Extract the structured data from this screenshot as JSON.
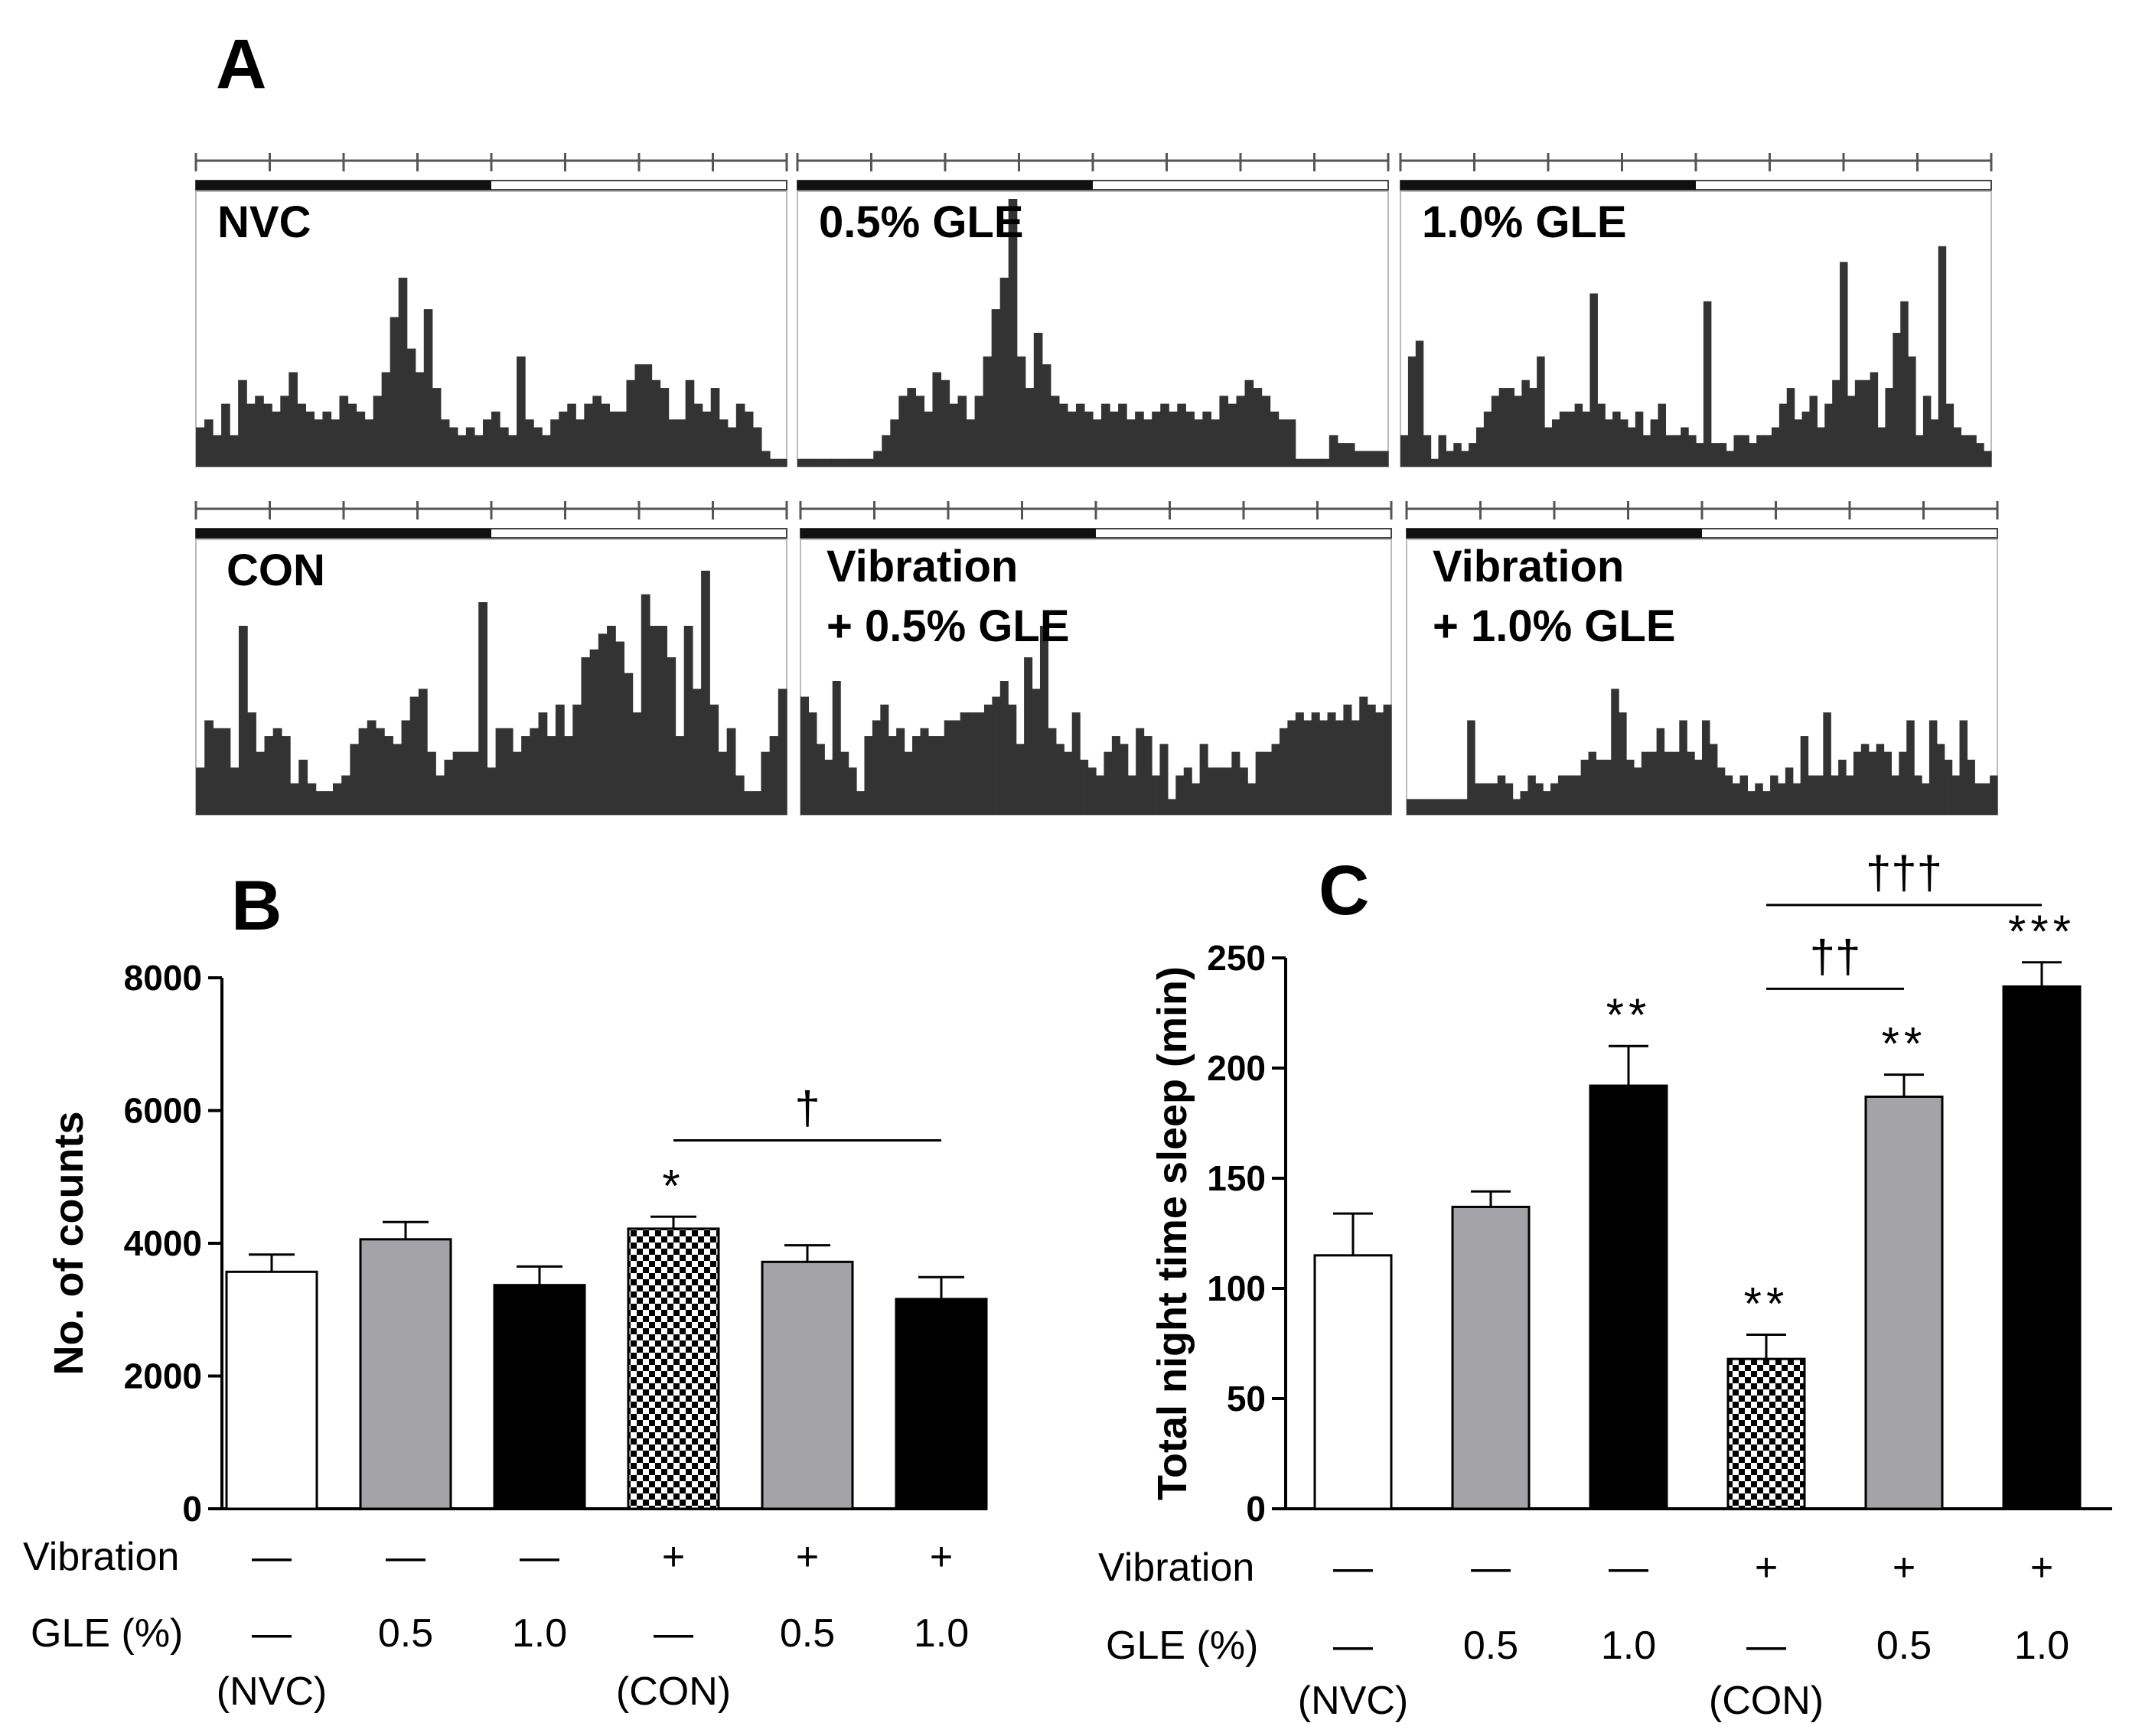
{
  "panels": {
    "a": "A",
    "b": "B",
    "c": "C"
  },
  "actograms": [
    {
      "label": [
        "NVC"
      ],
      "ymax": 34,
      "values": [
        5,
        6,
        4,
        8,
        4,
        11,
        8,
        9,
        8,
        7,
        9,
        12,
        8,
        7,
        6,
        7,
        6,
        9,
        8,
        7,
        6,
        9,
        12,
        19,
        24,
        15,
        12,
        20,
        10,
        6,
        5,
        4,
        5,
        4,
        6,
        7,
        5,
        4,
        14,
        6,
        5,
        4,
        6,
        7,
        8,
        6,
        8,
        9,
        8,
        7,
        7,
        11,
        13,
        13,
        11,
        10,
        6,
        6,
        11,
        8,
        7,
        10,
        6,
        5,
        8,
        7,
        5,
        2,
        1,
        1
      ]
    },
    {
      "label": [
        "0.5% GLE"
      ],
      "ymax": 34,
      "values": [
        1,
        1,
        1,
        1,
        1,
        1,
        1,
        1,
        1,
        2,
        4,
        6,
        9,
        10,
        9,
        7,
        12,
        11,
        8,
        9,
        6,
        9,
        14,
        20,
        24,
        34,
        14,
        10,
        17,
        13,
        9,
        8,
        7,
        8,
        7,
        6,
        8,
        7,
        8,
        6,
        7,
        6,
        7,
        8,
        7,
        8,
        7,
        6,
        7,
        6,
        9,
        8,
        9,
        11,
        10,
        9,
        7,
        6,
        6,
        1,
        1,
        1,
        1,
        4,
        3,
        3,
        2,
        2,
        2,
        2
      ]
    },
    {
      "label": [
        "1.0% GLE"
      ],
      "ymax": 34,
      "values": [
        4,
        14,
        16,
        4,
        1,
        4,
        2,
        3,
        2,
        3,
        5,
        7,
        9,
        10,
        10,
        9,
        11,
        10,
        14,
        5,
        6,
        7,
        7,
        8,
        7,
        22,
        8,
        6,
        7,
        6,
        5,
        7,
        4,
        6,
        8,
        4,
        4,
        5,
        4,
        3,
        21,
        3,
        3,
        2,
        4,
        4,
        3,
        4,
        4,
        5,
        8,
        10,
        6,
        7,
        9,
        5,
        8,
        11,
        26,
        9,
        11,
        11,
        12,
        5,
        10,
        17,
        21,
        14,
        4,
        9,
        6,
        28,
        8,
        5,
        4,
        4,
        3,
        2
      ]
    },
    {
      "label": [
        "CON"
      ],
      "ymax": 34,
      "values": [
        6,
        12,
        11,
        11,
        6,
        24,
        13,
        8,
        10,
        11,
        10,
        4,
        7,
        4,
        3,
        3,
        4,
        5,
        9,
        11,
        12,
        11,
        10,
        9,
        12,
        15,
        16,
        8,
        5,
        7,
        8,
        8,
        8,
        27,
        6,
        11,
        11,
        8,
        10,
        11,
        13,
        10,
        14,
        10,
        14,
        20,
        21,
        23,
        24,
        22,
        18,
        13,
        28,
        24,
        24,
        20,
        10,
        24,
        16,
        31,
        14,
        8,
        11,
        5,
        3,
        3,
        8,
        10,
        16
      ]
    },
    {
      "label": [
        "Vibration",
        "+ 0.5% GLE"
      ],
      "ymax": 34,
      "values": [
        15,
        13,
        9,
        7,
        17,
        8,
        6,
        3,
        10,
        12,
        14,
        10,
        11,
        8,
        10,
        11,
        10,
        10,
        12,
        12,
        13,
        13,
        13,
        14,
        15,
        17,
        14,
        9,
        20,
        16,
        24,
        11,
        9,
        8,
        13,
        7,
        6,
        5,
        8,
        10,
        9,
        5,
        11,
        10,
        5,
        9,
        2,
        5,
        6,
        4,
        9,
        6,
        6,
        6,
        8,
        6,
        4,
        8,
        8,
        9,
        11,
        12,
        13,
        12,
        13,
        12,
        13,
        12,
        14,
        12,
        15,
        14,
        13,
        14
      ]
    },
    {
      "label": [
        "Vibration",
        "+ 1.0% GLE"
      ],
      "ymax": 34,
      "values": [
        2,
        2,
        2,
        2,
        2,
        2,
        2,
        2,
        12,
        4,
        4,
        4,
        5,
        4,
        2,
        3,
        5,
        4,
        3,
        4,
        5,
        5,
        5,
        7,
        8,
        7,
        7,
        16,
        13,
        7,
        6,
        8,
        8,
        11,
        8,
        8,
        12,
        8,
        7,
        12,
        9,
        6,
        5,
        4,
        5,
        3,
        4,
        3,
        5,
        4,
        6,
        4,
        10,
        5,
        5,
        13,
        5,
        7,
        5,
        8,
        9,
        8,
        9,
        8,
        5,
        8,
        12,
        5,
        4,
        12,
        9,
        7,
        5,
        12,
        7,
        4,
        4,
        5
      ]
    }
  ],
  "chart_data": [
    {
      "type": "bar",
      "panel": "B",
      "categories": [
        "NVC",
        "0.5% GLE",
        "1.0% GLE",
        "CON",
        "Vibration + 0.5% GLE",
        "Vibration + 1.0% GLE"
      ],
      "values": [
        3570,
        4060,
        3370,
        4220,
        3720,
        3160
      ],
      "errors": [
        260,
        260,
        280,
        180,
        250,
        330
      ],
      "fills": [
        "white",
        "#a3a3a8",
        "#000000",
        "checker",
        "#a3a3a8",
        "#000000"
      ],
      "significance": [
        "",
        "",
        "",
        "*",
        "",
        ""
      ],
      "ylabel": "No. of counts",
      "ylim": [
        0,
        8000
      ],
      "yticks": [
        0,
        2000,
        4000,
        6000,
        8000
      ],
      "ytick_labels": [
        "0",
        "2000",
        "4000",
        "6000",
        "8000"
      ],
      "brackets": [
        {
          "from": 3,
          "to": 5,
          "y": 5550,
          "label": "†"
        }
      ],
      "vibration_row": {
        "label": "Vibration",
        "values": [
          "—",
          "—",
          "—",
          "+",
          "+",
          "+"
        ]
      },
      "gle_row": {
        "label": "GLE (%)",
        "values": [
          "—",
          "0.5",
          "1.0",
          "—",
          "0.5",
          "1.0"
        ]
      },
      "group_labels": [
        "(NVC)",
        "",
        "",
        "(CON)",
        "",
        ""
      ]
    },
    {
      "type": "bar",
      "panel": "C",
      "categories": [
        "NVC",
        "0.5% GLE",
        "1.0% GLE",
        "CON",
        "Vibration + 0.5% GLE",
        "Vibration + 1.0% GLE"
      ],
      "values": [
        115,
        137,
        192,
        68,
        187,
        237
      ],
      "errors": [
        19,
        7,
        18,
        11,
        10,
        11
      ],
      "fills": [
        "white",
        "#a3a3a8",
        "#000000",
        "checker",
        "#a3a3a8",
        "#000000"
      ],
      "significance": [
        "",
        "",
        "**",
        "**",
        "**",
        "***"
      ],
      "ylabel": "Total night time sleep (min)",
      "ylim": [
        0,
        250
      ],
      "yticks": [
        0,
        50,
        100,
        150,
        200,
        250
      ],
      "ytick_labels": [
        "0",
        "50",
        "100",
        "150",
        "200",
        "250"
      ],
      "brackets": [
        {
          "from": 3,
          "to": 4,
          "y": 236,
          "label": "††"
        },
        {
          "from": 3,
          "to": 5,
          "y": 274,
          "label": "†††"
        }
      ],
      "vibration_row": {
        "label": "Vibration",
        "values": [
          "—",
          "—",
          "—",
          "+",
          "+",
          "+"
        ]
      },
      "gle_row": {
        "label": "GLE (%)",
        "values": [
          "—",
          "0.5",
          "1.0",
          "—",
          "0.5",
          "1.0"
        ]
      },
      "group_labels": [
        "(NVC)",
        "",
        "",
        "(CON)",
        "",
        ""
      ]
    }
  ]
}
